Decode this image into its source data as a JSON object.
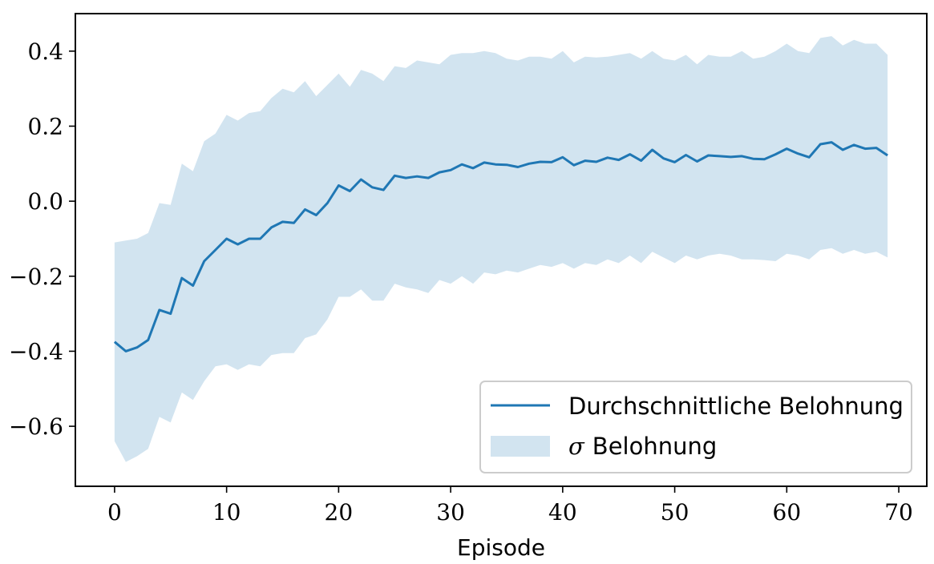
{
  "chart_data": {
    "type": "line",
    "title": "",
    "xlabel": "Episode",
    "ylabel": "",
    "xlim": [
      -3.5,
      72.5
    ],
    "ylim": [
      -0.76,
      0.5
    ],
    "x_ticks": [
      0,
      10,
      20,
      30,
      40,
      50,
      60,
      70
    ],
    "y_ticks": [
      -0.6,
      -0.4,
      -0.2,
      0.0,
      0.2,
      0.4
    ],
    "y_tick_labels": [
      "−0.6",
      "−0.4",
      "−0.2",
      "0.0",
      "0.2",
      "0.4"
    ],
    "x_tick_labels": [
      "0",
      "10",
      "20",
      "30",
      "40",
      "50",
      "60",
      "70"
    ],
    "grid": false,
    "legend_position": "lower-right",
    "colors": {
      "line": "#1f77b4",
      "band": "#1f77b4"
    },
    "series": [
      {
        "name": "Durchschnittliche Belohnung",
        "kind": "line",
        "x": [
          0,
          1,
          2,
          3,
          4,
          5,
          6,
          7,
          8,
          9,
          10,
          11,
          12,
          13,
          14,
          15,
          16,
          17,
          18,
          19,
          20,
          21,
          22,
          23,
          24,
          25,
          26,
          27,
          28,
          29,
          30,
          31,
          32,
          33,
          34,
          35,
          36,
          37,
          38,
          39,
          40,
          41,
          42,
          43,
          44,
          45,
          46,
          47,
          48,
          49,
          50,
          51,
          52,
          53,
          54,
          55,
          56,
          57,
          58,
          59,
          60,
          61,
          62,
          63,
          64,
          65,
          66,
          67,
          68,
          69
        ],
        "values": [
          -0.375,
          -0.4,
          -0.39,
          -0.37,
          -0.29,
          -0.3,
          -0.205,
          -0.225,
          -0.16,
          -0.13,
          -0.1,
          -0.115,
          -0.1,
          -0.1,
          -0.07,
          -0.055,
          -0.058,
          -0.022,
          -0.037,
          -0.005,
          0.042,
          0.027,
          0.058,
          0.037,
          0.03,
          0.068,
          0.062,
          0.066,
          0.062,
          0.077,
          0.083,
          0.098,
          0.088,
          0.103,
          0.098,
          0.097,
          0.091,
          0.1,
          0.105,
          0.104,
          0.117,
          0.096,
          0.108,
          0.105,
          0.116,
          0.11,
          0.125,
          0.108,
          0.137,
          0.114,
          0.104,
          0.123,
          0.106,
          0.122,
          0.12,
          0.118,
          0.12,
          0.113,
          0.112,
          0.125,
          0.14,
          0.127,
          0.117,
          0.152,
          0.157,
          0.137,
          0.15,
          0.14,
          0.142,
          0.122
        ]
      },
      {
        "name": "σ Belohnung",
        "kind": "band",
        "x": [
          0,
          1,
          2,
          3,
          4,
          5,
          6,
          7,
          8,
          9,
          10,
          11,
          12,
          13,
          14,
          15,
          16,
          17,
          18,
          19,
          20,
          21,
          22,
          23,
          24,
          25,
          26,
          27,
          28,
          29,
          30,
          31,
          32,
          33,
          34,
          35,
          36,
          37,
          38,
          39,
          40,
          41,
          42,
          43,
          44,
          45,
          46,
          47,
          48,
          49,
          50,
          51,
          52,
          53,
          54,
          55,
          56,
          57,
          58,
          59,
          60,
          61,
          62,
          63,
          64,
          65,
          66,
          67,
          68,
          69
        ],
        "upper": [
          -0.11,
          -0.105,
          -0.1,
          -0.085,
          -0.005,
          -0.01,
          0.1,
          0.08,
          0.16,
          0.18,
          0.23,
          0.215,
          0.235,
          0.24,
          0.275,
          0.3,
          0.29,
          0.32,
          0.28,
          0.31,
          0.34,
          0.305,
          0.35,
          0.34,
          0.32,
          0.36,
          0.355,
          0.375,
          0.37,
          0.365,
          0.39,
          0.395,
          0.395,
          0.4,
          0.395,
          0.38,
          0.375,
          0.385,
          0.385,
          0.38,
          0.4,
          0.37,
          0.385,
          0.383,
          0.385,
          0.39,
          0.395,
          0.38,
          0.4,
          0.38,
          0.375,
          0.39,
          0.365,
          0.39,
          0.385,
          0.385,
          0.4,
          0.38,
          0.385,
          0.4,
          0.42,
          0.4,
          0.395,
          0.435,
          0.44,
          0.415,
          0.43,
          0.42,
          0.42,
          0.39
        ],
        "lower": [
          -0.64,
          -0.695,
          -0.68,
          -0.66,
          -0.575,
          -0.59,
          -0.51,
          -0.53,
          -0.48,
          -0.44,
          -0.435,
          -0.45,
          -0.435,
          -0.44,
          -0.41,
          -0.405,
          -0.405,
          -0.365,
          -0.355,
          -0.315,
          -0.255,
          -0.255,
          -0.235,
          -0.265,
          -0.265,
          -0.22,
          -0.23,
          -0.235,
          -0.245,
          -0.21,
          -0.22,
          -0.2,
          -0.22,
          -0.19,
          -0.195,
          -0.185,
          -0.19,
          -0.18,
          -0.17,
          -0.175,
          -0.165,
          -0.18,
          -0.165,
          -0.17,
          -0.155,
          -0.165,
          -0.145,
          -0.165,
          -0.135,
          -0.15,
          -0.165,
          -0.145,
          -0.155,
          -0.145,
          -0.14,
          -0.145,
          -0.155,
          -0.155,
          -0.157,
          -0.16,
          -0.14,
          -0.145,
          -0.155,
          -0.13,
          -0.125,
          -0.14,
          -0.13,
          -0.14,
          -0.135,
          -0.15
        ]
      }
    ]
  },
  "legend": {
    "items": [
      {
        "label": "Durchschnittliche Belohnung",
        "symbol": "line"
      },
      {
        "sigma": "σ",
        "label": "Belohnung",
        "symbol": "band"
      }
    ]
  }
}
